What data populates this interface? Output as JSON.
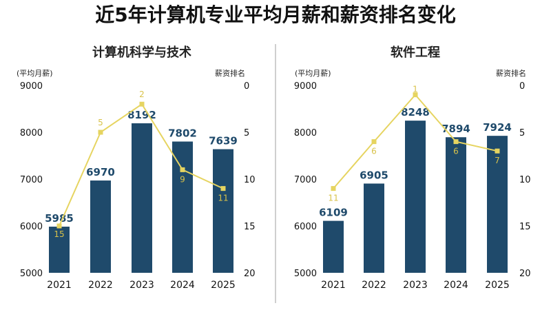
{
  "title": "近5年计算机专业平均月薪和薪资排名变化",
  "chart_data": [
    {
      "type": "bar",
      "title": "计算机科学与技术",
      "categories": [
        "2021",
        "2022",
        "2023",
        "2024",
        "2025"
      ],
      "ylabel": "(平均月薪)",
      "y2label": "薪资排名",
      "ylim": [
        5000,
        9000
      ],
      "yticks": [
        5000,
        6000,
        7000,
        8000,
        9000
      ],
      "y2lim": [
        0,
        20
      ],
      "y2ticks": [
        0,
        5,
        10,
        15,
        20
      ],
      "y2_inverted": true,
      "series": [
        {
          "type": "bar",
          "values": [
            5985,
            6970,
            8192,
            7802,
            7639
          ],
          "color": "#1f4a6b"
        },
        {
          "type": "line",
          "values": [
            15,
            5,
            2,
            9,
            11
          ],
          "color": "#e6d460",
          "axis": "right"
        }
      ]
    },
    {
      "type": "bar",
      "title": "软件工程",
      "categories": [
        "2021",
        "2022",
        "2023",
        "2024",
        "2025"
      ],
      "ylabel": "(平均月薪)",
      "y2label": "薪资排名",
      "ylim": [
        5000,
        9000
      ],
      "yticks": [
        5000,
        6000,
        7000,
        8000,
        9000
      ],
      "y2lim": [
        0,
        20
      ],
      "y2ticks": [
        0,
        5,
        10,
        15,
        20
      ],
      "y2_inverted": true,
      "series": [
        {
          "type": "bar",
          "values": [
            6109,
            6905,
            8248,
            7894,
            7924
          ],
          "color": "#1f4a6b"
        },
        {
          "type": "line",
          "values": [
            11,
            6,
            1,
            6,
            7
          ],
          "color": "#e6d460",
          "axis": "right"
        }
      ]
    }
  ]
}
